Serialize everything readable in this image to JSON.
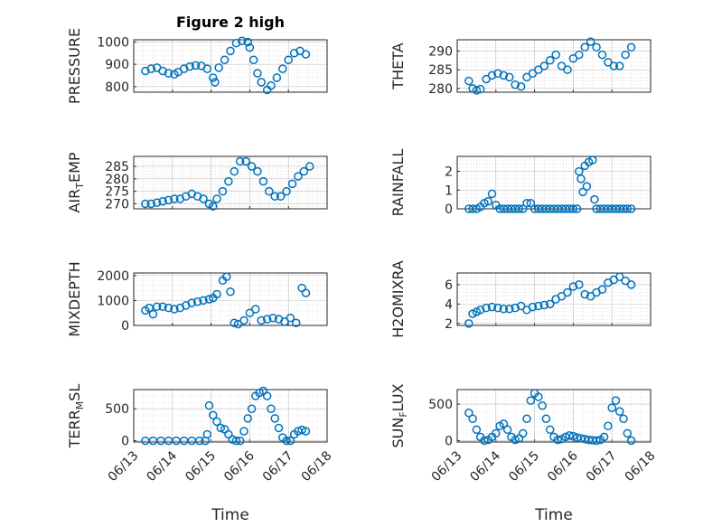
{
  "figure_title": "Figure 2 high",
  "colors": {
    "marker": "#0072bd",
    "axis": "#262626",
    "grid": "#bfbfbf"
  },
  "chart_data": [
    {
      "type": "scatter",
      "title": "Figure 2 high",
      "ylabel": "PRESSURE",
      "ylim": [
        775,
        1010
      ],
      "yticks": [
        800,
        900,
        1000
      ],
      "xlim": [
        0,
        5
      ],
      "xticks_shown": false,
      "x": [
        0.3,
        0.45,
        0.6,
        0.75,
        0.9,
        1.05,
        1.15,
        1.3,
        1.45,
        1.6,
        1.75,
        1.9,
        2.05,
        2.1,
        2.2,
        2.35,
        2.5,
        2.65,
        2.8,
        2.95,
        3.0,
        3.1,
        3.2,
        3.3,
        3.45,
        3.55,
        3.7,
        3.85,
        4.0,
        4.15,
        4.3,
        4.45
      ],
      "y": [
        870,
        880,
        885,
        870,
        860,
        855,
        865,
        880,
        890,
        895,
        893,
        880,
        840,
        820,
        885,
        920,
        960,
        995,
        1005,
        1000,
        975,
        920,
        860,
        820,
        785,
        805,
        840,
        880,
        920,
        950,
        960,
        945
      ],
      "grid": true,
      "legend": "none"
    },
    {
      "type": "scatter",
      "ylabel": "THETA",
      "ylim": [
        279,
        293
      ],
      "yticks": [
        280,
        285,
        290
      ],
      "xlim": [
        0,
        5
      ],
      "xticks_shown": false,
      "x": [
        0.3,
        0.4,
        0.5,
        0.6,
        0.75,
        0.9,
        1.05,
        1.2,
        1.35,
        1.5,
        1.65,
        1.8,
        1.95,
        2.1,
        2.25,
        2.4,
        2.55,
        2.7,
        2.85,
        3.0,
        3.15,
        3.3,
        3.45,
        3.6,
        3.75,
        3.9,
        4.05,
        4.2,
        4.35,
        4.5
      ],
      "y": [
        282,
        280,
        279.5,
        279.8,
        282.5,
        283.5,
        284,
        283.5,
        283,
        281,
        280.5,
        283,
        284,
        285,
        286,
        287.5,
        289,
        286,
        285,
        288,
        289,
        291,
        292.5,
        291,
        289,
        287,
        286,
        286,
        289,
        291
      ],
      "grid": true,
      "legend": "none"
    },
    {
      "type": "scatter",
      "ylabel": "AIR_TEMP",
      "ylim": [
        268,
        289
      ],
      "yticks": [
        270,
        275,
        280,
        285
      ],
      "xlim": [
        0,
        5
      ],
      "xticks_shown": false,
      "x": [
        0.3,
        0.45,
        0.6,
        0.75,
        0.9,
        1.05,
        1.2,
        1.35,
        1.5,
        1.65,
        1.8,
        1.95,
        2.05,
        2.15,
        2.3,
        2.45,
        2.6,
        2.75,
        2.9,
        3.05,
        3.2,
        3.35,
        3.5,
        3.65,
        3.8,
        3.95,
        4.1,
        4.25,
        4.4,
        4.55
      ],
      "y": [
        270,
        270,
        270.5,
        271,
        271.5,
        272,
        272,
        273,
        274,
        273,
        272,
        270,
        269,
        272,
        275,
        279,
        283,
        287,
        287,
        285,
        283,
        279,
        275,
        273,
        273,
        275,
        278,
        281,
        283,
        285
      ],
      "grid": true,
      "legend": "none"
    },
    {
      "type": "scatter",
      "ylabel": "RAINFALL",
      "ylim": [
        0,
        2.8
      ],
      "yticks": [
        0,
        1,
        2
      ],
      "xlim": [
        0,
        5
      ],
      "xticks_shown": false,
      "x": [
        0.3,
        0.4,
        0.5,
        0.6,
        0.7,
        0.8,
        0.9,
        1.0,
        1.1,
        1.2,
        1.3,
        1.4,
        1.5,
        1.6,
        1.7,
        1.8,
        1.9,
        2.0,
        2.1,
        2.2,
        2.3,
        2.4,
        2.5,
        2.6,
        2.7,
        2.8,
        2.9,
        3.0,
        3.1,
        3.15,
        3.2,
        3.25,
        3.3,
        3.35,
        3.4,
        3.5,
        3.55,
        3.6,
        3.7,
        3.8,
        3.9,
        4.0,
        4.1,
        4.2,
        4.3,
        4.4,
        4.5
      ],
      "y": [
        0,
        0,
        0,
        0.1,
        0.3,
        0.4,
        0.8,
        0.2,
        0,
        0,
        0,
        0,
        0,
        0,
        0,
        0.3,
        0.3,
        0,
        0,
        0,
        0,
        0,
        0,
        0,
        0,
        0,
        0,
        0,
        0,
        2.0,
        1.6,
        0.9,
        2.3,
        1.2,
        2.5,
        2.6,
        0.5,
        0,
        0,
        0,
        0,
        0,
        0,
        0,
        0,
        0,
        0
      ],
      "grid": true,
      "legend": "none"
    },
    {
      "type": "scatter",
      "ylabel": "MIXDEPTH",
      "ylim": [
        0,
        2100
      ],
      "yticks": [
        0,
        1000,
        2000
      ],
      "xlim": [
        0,
        5
      ],
      "xticks_shown": false,
      "x": [
        0.3,
        0.4,
        0.5,
        0.6,
        0.75,
        0.9,
        1.05,
        1.2,
        1.35,
        1.5,
        1.65,
        1.8,
        1.95,
        2.05,
        2.15,
        2.3,
        2.4,
        2.5,
        2.6,
        2.7,
        2.85,
        3.0,
        3.15,
        3.3,
        3.45,
        3.6,
        3.75,
        3.9,
        4.05,
        4.2,
        4.35,
        4.45
      ],
      "y": [
        600,
        700,
        450,
        750,
        750,
        700,
        650,
        700,
        800,
        900,
        950,
        1000,
        1050,
        1100,
        1250,
        1800,
        1950,
        1350,
        100,
        50,
        200,
        500,
        650,
        200,
        250,
        300,
        250,
        150,
        300,
        100,
        1500,
        1300
      ],
      "grid": true,
      "legend": "none"
    },
    {
      "type": "scatter",
      "ylabel": "H2OMIXRA",
      "ylim": [
        1.8,
        7.2
      ],
      "yticks": [
        2,
        4,
        6
      ],
      "xlim": [
        0,
        5
      ],
      "xticks_shown": false,
      "x": [
        0.3,
        0.4,
        0.5,
        0.6,
        0.75,
        0.9,
        1.05,
        1.2,
        1.35,
        1.5,
        1.65,
        1.8,
        1.95,
        2.1,
        2.25,
        2.4,
        2.55,
        2.7,
        2.85,
        3.0,
        3.15,
        3.3,
        3.45,
        3.6,
        3.75,
        3.9,
        4.05,
        4.2,
        4.35,
        4.5
      ],
      "y": [
        2.0,
        3.0,
        3.2,
        3.4,
        3.6,
        3.7,
        3.6,
        3.5,
        3.5,
        3.6,
        3.8,
        3.4,
        3.7,
        3.8,
        3.9,
        4.0,
        4.5,
        4.8,
        5.2,
        5.8,
        6.0,
        5.0,
        4.8,
        5.2,
        5.5,
        6.2,
        6.5,
        6.8,
        6.4,
        6.0
      ],
      "grid": true,
      "legend": "none"
    },
    {
      "type": "scatter",
      "ylabel": "TERR_MSL",
      "ylim": [
        -20,
        800
      ],
      "yticks": [
        0,
        500
      ],
      "xlim": [
        0,
        5
      ],
      "xticklabels": [
        "06/13",
        "06/14",
        "06/15",
        "06/16",
        "06/17",
        "06/18"
      ],
      "xlabel": "Time",
      "x": [
        0.3,
        0.5,
        0.7,
        0.9,
        1.1,
        1.3,
        1.5,
        1.7,
        1.85,
        1.9,
        1.95,
        2.05,
        2.15,
        2.25,
        2.35,
        2.45,
        2.55,
        2.65,
        2.75,
        2.85,
        2.95,
        3.05,
        3.15,
        3.25,
        3.35,
        3.45,
        3.55,
        3.65,
        3.75,
        3.85,
        3.95,
        4.05,
        4.15,
        4.25,
        4.35,
        4.45
      ],
      "y": [
        0,
        0,
        0,
        0,
        0,
        0,
        0,
        0,
        0,
        100,
        550,
        400,
        300,
        200,
        180,
        100,
        20,
        0,
        0,
        150,
        350,
        500,
        700,
        750,
        780,
        700,
        500,
        350,
        200,
        50,
        0,
        0,
        100,
        150,
        170,
        150
      ],
      "grid": true,
      "legend": "none"
    },
    {
      "type": "scatter",
      "ylabel": "SUN_FLUX",
      "ylim": [
        -20,
        700
      ],
      "yticks": [
        0,
        500
      ],
      "xlim": [
        0,
        5
      ],
      "xticklabels": [
        "06/13",
        "06/14",
        "06/15",
        "06/16",
        "06/17",
        "06/18"
      ],
      "xlabel": "Time",
      "x": [
        0.3,
        0.4,
        0.5,
        0.6,
        0.7,
        0.8,
        0.9,
        1.0,
        1.1,
        1.2,
        1.3,
        1.4,
        1.5,
        1.6,
        1.7,
        1.8,
        1.9,
        2.0,
        2.1,
        2.2,
        2.3,
        2.4,
        2.5,
        2.6,
        2.7,
        2.8,
        2.9,
        3.0,
        3.1,
        3.2,
        3.3,
        3.4,
        3.5,
        3.6,
        3.7,
        3.8,
        3.9,
        4.0,
        4.1,
        4.2,
        4.3,
        4.4,
        4.5
      ],
      "y": [
        380,
        300,
        150,
        50,
        0,
        10,
        50,
        100,
        200,
        230,
        150,
        50,
        10,
        30,
        100,
        300,
        550,
        650,
        600,
        480,
        300,
        150,
        50,
        10,
        20,
        50,
        70,
        60,
        40,
        30,
        20,
        10,
        5,
        0,
        10,
        50,
        200,
        450,
        550,
        400,
        300,
        100,
        0
      ],
      "grid": true,
      "legend": "none"
    }
  ]
}
